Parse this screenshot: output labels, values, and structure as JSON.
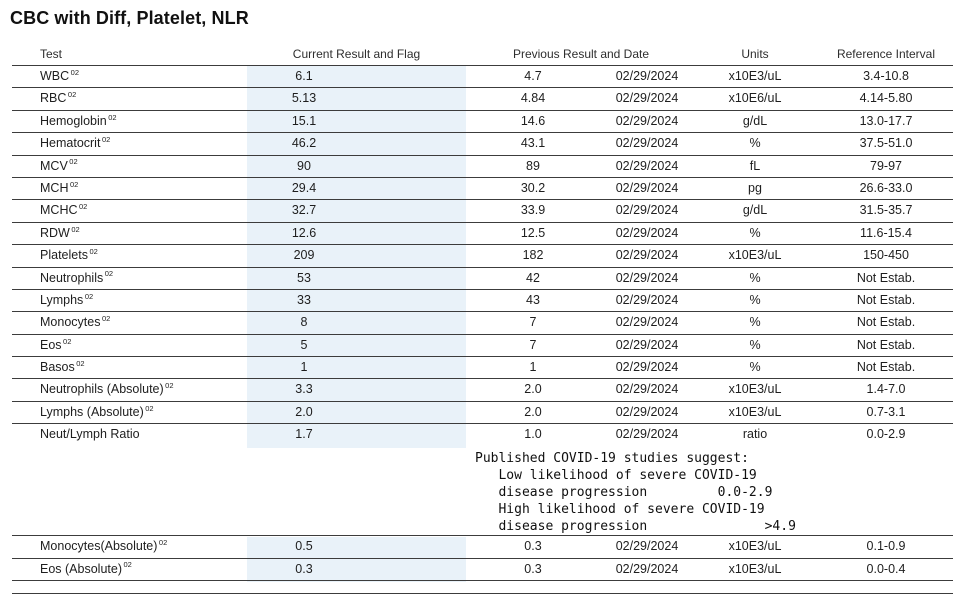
{
  "title": "CBC with Diff, Platelet, NLR",
  "colors": {
    "highlight_band": "#e9f2f9",
    "rule": "#3c3c3c",
    "text": "#1e1e1e"
  },
  "table": {
    "headers": {
      "test": "Test",
      "current": "Current Result and Flag",
      "previous": "Previous Result and Date",
      "units": "Units",
      "reference": "Reference Interval"
    },
    "rows": [
      {
        "test": "WBC",
        "sup": "02",
        "current": "6.1",
        "previous": "4.7",
        "date": "02/29/2024",
        "units": "x10E3/uL",
        "reference": "3.4-10.8"
      },
      {
        "test": "RBC",
        "sup": "02",
        "current": "5.13",
        "previous": "4.84",
        "date": "02/29/2024",
        "units": "x10E6/uL",
        "reference": "4.14-5.80"
      },
      {
        "test": "Hemoglobin",
        "sup": "02",
        "current": "15.1",
        "previous": "14.6",
        "date": "02/29/2024",
        "units": "g/dL",
        "reference": "13.0-17.7"
      },
      {
        "test": "Hematocrit",
        "sup": "02",
        "current": "46.2",
        "previous": "43.1",
        "date": "02/29/2024",
        "units": "%",
        "reference": "37.5-51.0"
      },
      {
        "test": "MCV",
        "sup": "02",
        "current": "90",
        "previous": "89",
        "date": "02/29/2024",
        "units": "fL",
        "reference": "79-97"
      },
      {
        "test": "MCH",
        "sup": "02",
        "current": "29.4",
        "previous": "30.2",
        "date": "02/29/2024",
        "units": "pg",
        "reference": "26.6-33.0"
      },
      {
        "test": "MCHC",
        "sup": "02",
        "current": "32.7",
        "previous": "33.9",
        "date": "02/29/2024",
        "units": "g/dL",
        "reference": "31.5-35.7"
      },
      {
        "test": "RDW",
        "sup": "02",
        "current": "12.6",
        "previous": "12.5",
        "date": "02/29/2024",
        "units": "%",
        "reference": "11.6-15.4"
      },
      {
        "test": "Platelets",
        "sup": "02",
        "current": "209",
        "previous": "182",
        "date": "02/29/2024",
        "units": "x10E3/uL",
        "reference": "150-450"
      },
      {
        "test": "Neutrophils",
        "sup": "02",
        "current": "53",
        "previous": "42",
        "date": "02/29/2024",
        "units": "%",
        "reference": "Not Estab."
      },
      {
        "test": "Lymphs",
        "sup": "02",
        "current": "33",
        "previous": "43",
        "date": "02/29/2024",
        "units": "%",
        "reference": "Not Estab."
      },
      {
        "test": "Monocytes",
        "sup": "02",
        "current": "8",
        "previous": "7",
        "date": "02/29/2024",
        "units": "%",
        "reference": "Not Estab."
      },
      {
        "test": "Eos",
        "sup": "02",
        "current": "5",
        "previous": "7",
        "date": "02/29/2024",
        "units": "%",
        "reference": "Not Estab."
      },
      {
        "test": "Basos",
        "sup": "02",
        "current": "1",
        "previous": "1",
        "date": "02/29/2024",
        "units": "%",
        "reference": "Not Estab."
      },
      {
        "test": "Neutrophils (Absolute)",
        "sup": "02",
        "current": "3.3",
        "previous": "2.0",
        "date": "02/29/2024",
        "units": "x10E3/uL",
        "reference": "1.4-7.0"
      },
      {
        "test": "Lymphs (Absolute)",
        "sup": "02",
        "current": "2.0",
        "previous": "2.0",
        "date": "02/29/2024",
        "units": "x10E3/uL",
        "reference": "0.7-3.1"
      },
      {
        "test": "Neut/Lymph Ratio",
        "sup": "",
        "current": "1.7",
        "previous": "1.0",
        "date": "02/29/2024",
        "units": "ratio",
        "reference": "0.0-2.9"
      }
    ],
    "note_lines": [
      "Published COVID-19 studies suggest:",
      "   Low likelihood of severe COVID-19",
      "   disease progression         0.0-2.9",
      "   High likelihood of severe COVID-19",
      "   disease progression               >4.9"
    ],
    "rows_bottom": [
      {
        "test": "Monocytes(Absolute)",
        "sup": "02",
        "current": "0.5",
        "previous": "0.3",
        "date": "02/29/2024",
        "units": "x10E3/uL",
        "reference": "0.1-0.9"
      },
      {
        "test": "Eos (Absolute)",
        "sup": "02",
        "current": "0.3",
        "previous": "0.3",
        "date": "02/29/2024",
        "units": "x10E3/uL",
        "reference": "0.0-0.4"
      }
    ]
  }
}
